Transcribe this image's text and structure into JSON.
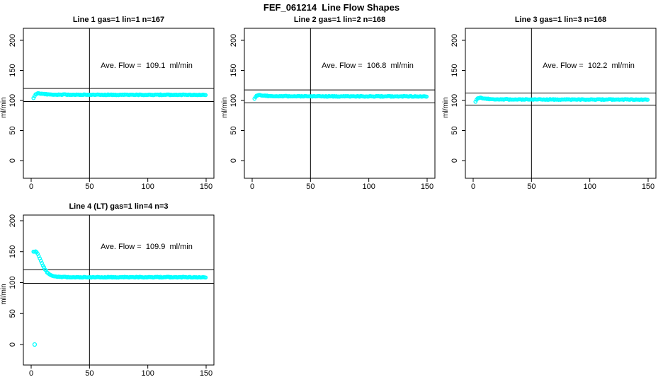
{
  "main_title": "FEF_061214  Line Flow Shapes",
  "axes": {
    "ylabel": "ml/min",
    "x_ticks": [
      0,
      50,
      100,
      150
    ],
    "y_ticks": [
      0,
      50,
      100,
      150,
      200
    ],
    "vline_x": 50,
    "point_color": "#00FFFF",
    "axis_color": "#000000",
    "xlim": [
      -7,
      157
    ],
    "ylim": [
      -30,
      220
    ],
    "grid": false
  },
  "chart_data": {
    "type": "scatter",
    "title": "FEF_061214  Line Flow Shapes",
    "annotation_pos": {
      "x": 99,
      "y": 155
    },
    "panels": [
      {
        "title": "Line 1 gas=1 lin=1 n=167",
        "ave_flow": 109.1,
        "ave_flow_label": "Ave. Flow =  109.1  ml/min",
        "ref_lines": [
          120.0,
          98.2
        ],
        "x_range": [
          2,
          150
        ],
        "x_step": 0.9,
        "anchors": [
          [
            2,
            104.5
          ],
          [
            3,
            108
          ],
          [
            4,
            111
          ],
          [
            6,
            111.6
          ],
          [
            9,
            111.4
          ],
          [
            12,
            110.4
          ],
          [
            20,
            109.8
          ],
          [
            40,
            109.5
          ],
          [
            80,
            109.4
          ],
          [
            150,
            109.4
          ]
        ],
        "outliers": []
      },
      {
        "title": "Line 2 gas=1 lin=2 n=168",
        "ave_flow": 106.8,
        "ave_flow_label": "Ave. Flow =  106.8  ml/min",
        "ref_lines": [
          117.5,
          96.1
        ],
        "x_range": [
          2,
          150
        ],
        "x_step": 0.9,
        "anchors": [
          [
            2,
            103.5
          ],
          [
            3,
            106.5
          ],
          [
            4,
            108.5
          ],
          [
            7,
            108.8
          ],
          [
            10,
            108
          ],
          [
            15,
            107.3
          ],
          [
            30,
            107
          ],
          [
            80,
            106.8
          ],
          [
            150,
            106.8
          ]
        ],
        "outliers": []
      },
      {
        "title": "Line 3 gas=1 lin=3 n=168",
        "ave_flow": 102.2,
        "ave_flow_label": "Ave. Flow =  102.2  ml/min",
        "ref_lines": [
          112.4,
          92.0
        ],
        "x_range": [
          2,
          150
        ],
        "x_step": 0.9,
        "anchors": [
          [
            2,
            98.5
          ],
          [
            3,
            102
          ],
          [
            4,
            104
          ],
          [
            7,
            104.3
          ],
          [
            10,
            103
          ],
          [
            15,
            102.2
          ],
          [
            30,
            101.7
          ],
          [
            80,
            101.6
          ],
          [
            150,
            101.6
          ]
        ],
        "outliers": []
      },
      {
        "title": "Line 4 (LT) gas=1 lin=4 n=3",
        "ave_flow": 109.9,
        "ave_flow_label": "Ave. Flow =  109.9  ml/min",
        "ref_lines": [
          120.9,
          98.9
        ],
        "x_range": [
          2,
          150
        ],
        "x_step": 0.9,
        "anchors": [
          [
            2,
            150.5
          ],
          [
            4,
            150.5
          ],
          [
            5,
            149
          ],
          [
            6,
            144
          ],
          [
            8,
            137
          ],
          [
            10,
            128
          ],
          [
            12,
            121
          ],
          [
            14,
            116
          ],
          [
            16,
            113
          ],
          [
            18,
            111.3
          ],
          [
            20,
            110.4
          ],
          [
            24,
            109.4
          ],
          [
            28,
            109
          ],
          [
            35,
            108.7
          ],
          [
            50,
            108.6
          ],
          [
            100,
            108.8
          ],
          [
            150,
            108.7
          ]
        ],
        "outliers": [
          [
            3,
            0
          ]
        ]
      }
    ]
  }
}
